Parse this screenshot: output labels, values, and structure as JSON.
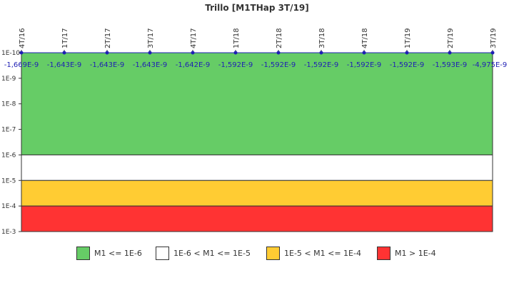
{
  "chart_data": {
    "type": "line",
    "title": "Trillo [M1THap 3T/19]",
    "categories": [
      "4T/16",
      "1T/17",
      "2T/17",
      "3T/17",
      "4T/17",
      "1T/18",
      "2T/18",
      "3T/18",
      "4T/18",
      "1T/19",
      "2T/19",
      "3T/19"
    ],
    "series": [
      {
        "values": [
          -1.669e-09,
          -1.643e-09,
          -1.643e-09,
          -1.643e-09,
          -1.642e-09,
          -1.592e-09,
          -1.592e-09,
          -1.592e-09,
          -1.592e-09,
          -1.592e-09,
          -1.593e-09,
          -4.975e-09
        ],
        "value_labels": [
          "-1,669E-9",
          "-1,643E-9",
          "-1,643E-9",
          "-1,643E-9",
          "-1,642E-9",
          "-1,592E-9",
          "-1,592E-9",
          "-1,592E-9",
          "-1,592E-9",
          "-1,592E-9",
          "-1,593E-9",
          "-4,975E-9"
        ],
        "color": "#1f1fb4"
      }
    ],
    "y_scale": "log",
    "y_reversed": true,
    "ylim": [
      1e-10,
      0.001
    ],
    "y_ticks": [
      "1E-10",
      "1E-9",
      "1E-8",
      "1E-7",
      "1E-6",
      "1E-5",
      "1E-4",
      "1E-3"
    ],
    "bands": [
      {
        "from_exp": -10,
        "to_exp": -6,
        "color": "#66cc66"
      },
      {
        "from_exp": -6,
        "to_exp": -5,
        "color": "#ffffff"
      },
      {
        "from_exp": -5,
        "to_exp": -4,
        "color": "#ffcc33"
      },
      {
        "from_exp": -4,
        "to_exp": -3,
        "color": "#ff3333"
      }
    ],
    "grid": false,
    "legend_position": "bottom"
  },
  "legend": [
    {
      "label": "M1 <= 1E-6",
      "color": "#66cc66"
    },
    {
      "label": "1E-6 < M1 <= 1E-5",
      "color": "#ffffff"
    },
    {
      "label": "1E-5 < M1 <= 1E-4",
      "color": "#ffcc33"
    },
    {
      "label": "M1 > 1E-4",
      "color": "#ff3333"
    }
  ]
}
